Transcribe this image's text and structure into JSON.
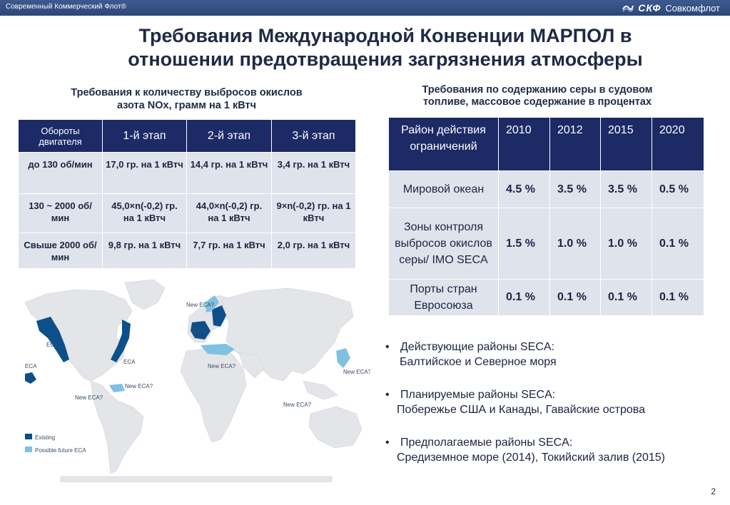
{
  "header": {
    "company": "Современный Коммерческий Флот®",
    "logo_mark": "СКФ",
    "logo_text": "Совкомфлот"
  },
  "title": {
    "line1": "Требования Международной Конвенции МАРПОЛ в",
    "line2": "отношении предотвращения загрязнения атмосферы"
  },
  "nox": {
    "heading_line1": "Требования к количеству выбросов окислов",
    "heading_line2": "азота NOx, грамм на 1 кВтч",
    "columns": [
      "Обороты двигателя",
      "1-й этап",
      "2-й этап",
      "3-й этап"
    ],
    "rows": [
      [
        "до 130 об/мин",
        "17,0 гр. на 1 кВтч",
        "14,4 гр. на 1 кВтч",
        "3,4 гр. на 1 кВтч"
      ],
      [
        "130 ~ 2000 об/мин",
        "45,0×n(-0,2) гр. на 1 кВтч",
        "44,0×n(-0,2) гр. на 1 кВтч",
        "9×n(-0,2) гр. на 1 кВтч"
      ],
      [
        "Свыше 2000 об/мин",
        "9,8 гр. на 1 кВтч",
        "7,7 гр. на 1 кВтч",
        "2,0 гр. на 1 кВтч"
      ]
    ]
  },
  "sulfur": {
    "heading_line1": "Требования по содержанию серы в судовом",
    "heading_line2": "топливе, массовое содержание в процентах",
    "columns": [
      "Район действия ограничений",
      "2010",
      "2012",
      "2015",
      "2020"
    ],
    "rows": [
      [
        "Мировой океан",
        "4.5 %",
        "3.5 %",
        "3.5 %",
        "0.5 %"
      ],
      [
        "Зоны контроля выбросов окислов серы/ IMO SECA",
        "1.5 %",
        "1.0 %",
        "1.0 %",
        "0.1 %"
      ],
      [
        "Порты стран Евросоюза",
        "0.1 %",
        "0.1 %",
        "0.1 %",
        "0.1 %"
      ]
    ]
  },
  "map": {
    "labels": {
      "eca_na": "ECA",
      "eca_hawaii": "ECA",
      "eca_us_east": "ECA",
      "eca_europe": "ECA",
      "new_eca_1": "New ECA?",
      "new_eca_2": "New ECA?",
      "new_eca_3": "New ECA?",
      "new_eca_4": "New ECA?",
      "new_eca_5": "New ECA?",
      "new_eca_6": "New ECA?"
    },
    "legend": {
      "existing": "Existing",
      "future": "Possible future ECA"
    },
    "colors": {
      "existing": "#0d4f8b",
      "future": "#7fc1e0",
      "land": "#e3e5e8"
    }
  },
  "bullets": [
    {
      "line1": "Действующие районы SECA:",
      "line2": "Балтийское и  Северное моря"
    },
    {
      "line1": "Планируемые районы SECA:",
      "line2": "Побережье США  и Канады, Гавайские острова"
    },
    {
      "line1": "Предполагаемые районы SECA:",
      "line2": "Средиземное море (2014), Токийский залив (2015)"
    }
  ],
  "bullet_char": "•",
  "page_number": "2"
}
